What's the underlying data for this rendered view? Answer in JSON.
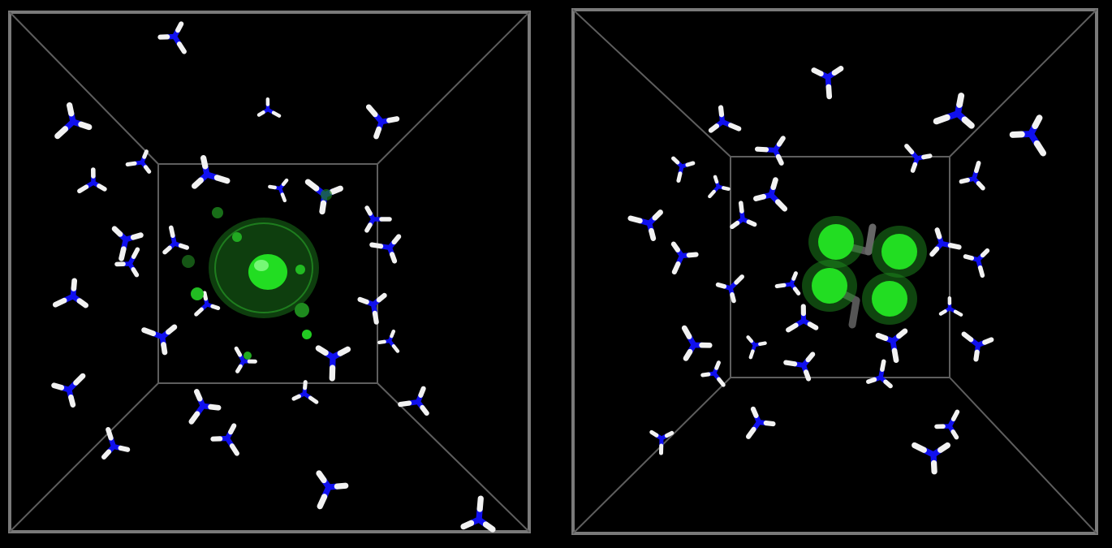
{
  "scene": {
    "background": "#000000",
    "box_color": "#7a7a7a",
    "nitrogen_color": "#1010ee",
    "hydrogen_color": "#f2f2f2",
    "density_color": "#22dd22",
    "density_halo_color": "#1e8a1e"
  },
  "panels": [
    {
      "id": "left",
      "density_lobes": 1
    },
    {
      "id": "right",
      "density_lobes": 4
    }
  ]
}
